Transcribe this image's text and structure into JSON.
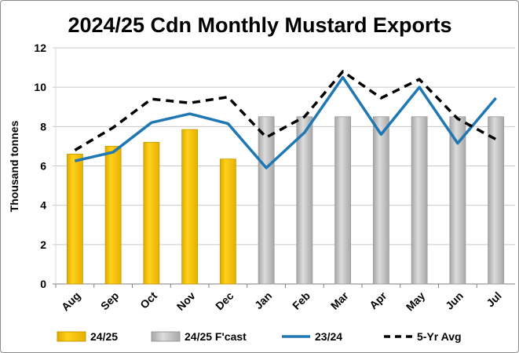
{
  "chart_data": {
    "type": "bar",
    "title": "2024/25 Cdn Monthly Mustard Exports",
    "xlabel": "",
    "ylabel": "Thousand tonnes",
    "ylim": [
      0,
      12
    ],
    "yticks": [
      0,
      2,
      4,
      6,
      8,
      10,
      12
    ],
    "grid": true,
    "legend_position": "bottom",
    "categories": [
      "Aug",
      "Sep",
      "Oct",
      "Nov",
      "Dec",
      "Jan",
      "Feb",
      "Mar",
      "Apr",
      "May",
      "Jun",
      "Jul"
    ],
    "series": [
      {
        "name": "24/25",
        "type": "bar",
        "color": "#FFCC00",
        "values": [
          6.6,
          7.0,
          7.2,
          7.85,
          6.35,
          null,
          null,
          null,
          null,
          null,
          null,
          null
        ]
      },
      {
        "name": "24/25 F'cast",
        "type": "bar",
        "color": "#C8C8C8",
        "values": [
          null,
          null,
          null,
          null,
          null,
          8.5,
          8.5,
          8.5,
          8.5,
          8.5,
          8.5,
          8.5
        ]
      },
      {
        "name": "23/24",
        "type": "line",
        "color": "#1F77B4",
        "values": [
          6.25,
          6.7,
          8.2,
          8.65,
          8.15,
          5.9,
          7.7,
          10.5,
          7.6,
          10.0,
          7.15,
          9.45
        ]
      },
      {
        "name": "5-Yr Avg",
        "type": "line-dashed",
        "color": "#000000",
        "values": [
          6.8,
          7.95,
          9.4,
          9.2,
          9.5,
          7.45,
          8.5,
          10.8,
          9.45,
          10.4,
          8.4,
          7.35
        ]
      }
    ]
  }
}
